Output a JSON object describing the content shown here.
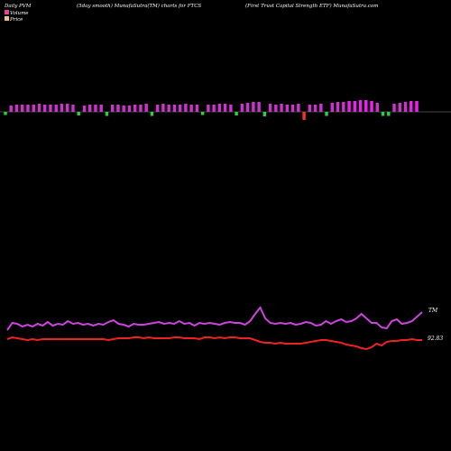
{
  "header": {
    "left": "Daily PVM",
    "center": "(5day smooth) MunafaSutra(TM) charts for FTCS",
    "right": "(First Trust Capital Strength ETF) MunafaSutra.com"
  },
  "legend": {
    "volume_label": "Volume",
    "price_label": "Price",
    "volume_color": "#e8439a",
    "price_color": "#f3c08a"
  },
  "colors": {
    "background": "#000000",
    "bar_up": "#cc33cc",
    "bar_up_strong": "#ee22ee",
    "bar_down": "#ee3333",
    "bar_green": "#33cc44",
    "pvm_line": "#cc44dd",
    "price_line": "#ee2222"
  },
  "labels": {
    "pvm_line_end": "TM",
    "price_line_end": "92.83"
  },
  "chart_data": {
    "type": "bar",
    "title": "(5day smooth) MunafaSutra(TM) charts for FTCS",
    "bars": {
      "values": [
        7,
        7,
        8,
        8,
        8,
        8,
        9,
        8,
        8,
        8,
        9,
        9,
        8,
        8,
        7,
        8,
        8,
        8,
        9,
        8,
        8,
        7,
        7,
        8,
        8,
        9,
        9,
        8,
        9,
        8,
        8,
        8,
        9,
        8,
        8,
        7,
        8,
        8,
        9,
        9,
        8,
        8,
        9,
        10,
        11,
        11,
        10,
        9,
        8,
        9,
        8,
        8,
        9,
        9,
        8,
        8,
        9,
        9,
        10,
        11,
        11,
        12,
        12,
        13,
        13,
        12,
        10,
        9,
        9,
        9,
        10,
        11,
        12,
        12
      ],
      "signs": [
        "dn_g",
        "up",
        "up",
        "up",
        "up",
        "up",
        "up",
        "up",
        "up",
        "up",
        "up",
        "up",
        "up",
        "dn_g",
        "up",
        "up",
        "up",
        "up",
        "dn_g",
        "up",
        "up",
        "up",
        "up",
        "up",
        "up",
        "up",
        "dn_g",
        "up",
        "up",
        "up",
        "up",
        "up",
        "up",
        "up",
        "up",
        "dn_g",
        "up",
        "up",
        "up",
        "up",
        "up",
        "dn_g",
        "up",
        "up",
        "up",
        "up",
        "dn_g",
        "up",
        "up",
        "up",
        "up",
        "up",
        "up",
        "dn_r",
        "up",
        "up",
        "up",
        "dn_g",
        "up",
        "up",
        "up",
        "up",
        "up",
        "up",
        "up",
        "up",
        "up",
        "dn_g",
        "dn_g",
        "up",
        "up",
        "up",
        "up",
        "up"
      ]
    },
    "series": [
      {
        "name": "Volume",
        "values": [
          20,
          28,
          27,
          24,
          26,
          24,
          27,
          25,
          29,
          25,
          27,
          26,
          30,
          27,
          28,
          26,
          27,
          25,
          27,
          26,
          29,
          31,
          27,
          26,
          24,
          27,
          26,
          26,
          27,
          28,
          29,
          27,
          28,
          27,
          30,
          27,
          28,
          25,
          28,
          27,
          28,
          27,
          26,
          28,
          29,
          28,
          28,
          26,
          30,
          38,
          45,
          33,
          28,
          27,
          28,
          27,
          28,
          26,
          27,
          29,
          28,
          25,
          26,
          30,
          27,
          30,
          32,
          29,
          30,
          33,
          38,
          33,
          28,
          28,
          23,
          22,
          30,
          32,
          27,
          28,
          30,
          35,
          40
        ]
      },
      {
        "name": "Price",
        "values": [
          16,
          18,
          17,
          16,
          15,
          16,
          15,
          16,
          16,
          16,
          16,
          16,
          16,
          16,
          16,
          16,
          16,
          16,
          16,
          16,
          15,
          16,
          17,
          17,
          17,
          18,
          18,
          17,
          18,
          17,
          17,
          17,
          17,
          18,
          18,
          17,
          17,
          17,
          16,
          18,
          18,
          17,
          18,
          17,
          18,
          18,
          17,
          17,
          17,
          15,
          13,
          12,
          12,
          11,
          12,
          11,
          11,
          11,
          11,
          12,
          13,
          14,
          15,
          15,
          14,
          13,
          12,
          10,
          9,
          8,
          6,
          5,
          7,
          11,
          9,
          13,
          14,
          14,
          15,
          15,
          16,
          15,
          15
        ]
      }
    ]
  }
}
